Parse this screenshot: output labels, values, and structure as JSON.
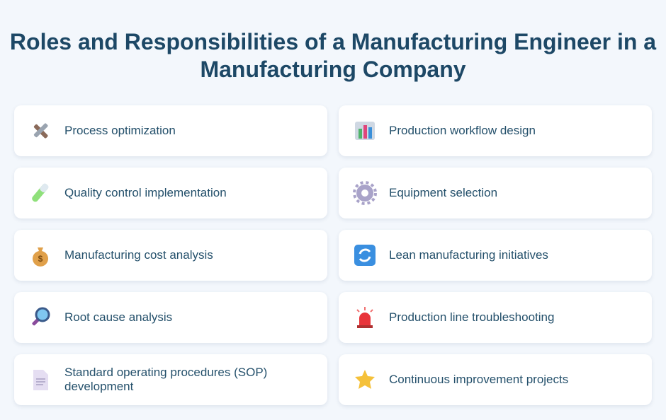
{
  "header": {
    "title": "Roles and Responsibilities of a Manufacturing Engineer in a Manufacturing Company"
  },
  "items": [
    {
      "label": "Process optimization"
    },
    {
      "label": "Production workflow design"
    },
    {
      "label": "Quality control implementation"
    },
    {
      "label": "Equipment selection"
    },
    {
      "label": "Manufacturing cost analysis"
    },
    {
      "label": "Lean manufacturing initiatives"
    },
    {
      "label": "Root cause analysis"
    },
    {
      "label": "Production line troubleshooting"
    },
    {
      "label": "Standard operating procedures (SOP) development"
    },
    {
      "label": "Continuous improvement projects"
    }
  ]
}
